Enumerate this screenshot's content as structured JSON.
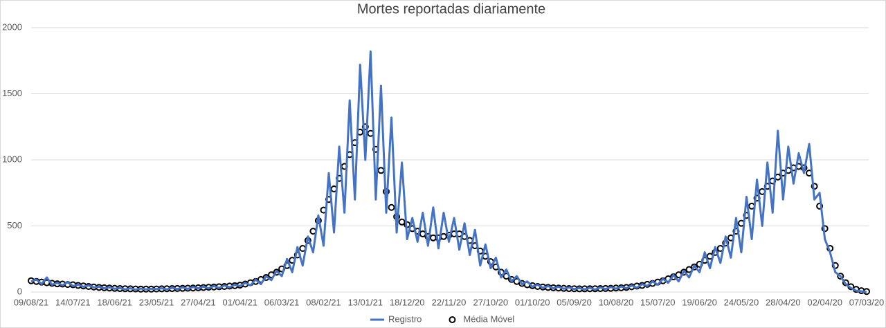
{
  "chart_data": {
    "type": "line",
    "title": "Mortes reportadas diariamente",
    "categories": [
      "09/08/21",
      null,
      null,
      null,
      null,
      null,
      null,
      null,
      "14/07/21",
      null,
      null,
      null,
      null,
      null,
      null,
      null,
      "18/06/21",
      null,
      null,
      null,
      null,
      null,
      null,
      null,
      "23/05/21",
      null,
      null,
      null,
      null,
      null,
      null,
      null,
      "27/04/21",
      null,
      null,
      null,
      null,
      null,
      null,
      null,
      "01/04/21",
      null,
      null,
      null,
      null,
      null,
      null,
      null,
      "06/03/21",
      null,
      null,
      null,
      null,
      null,
      null,
      null,
      "08/02/21",
      null,
      null,
      null,
      null,
      null,
      null,
      null,
      "13/01/21",
      null,
      null,
      null,
      null,
      null,
      null,
      null,
      "18/12/20",
      null,
      null,
      null,
      null,
      null,
      null,
      null,
      "22/11/20",
      null,
      null,
      null,
      null,
      null,
      null,
      null,
      "27/10/20",
      null,
      null,
      null,
      null,
      null,
      null,
      null,
      "01/10/20",
      null,
      null,
      null,
      null,
      null,
      null,
      null,
      "05/09/20",
      null,
      null,
      null,
      null,
      null,
      null,
      null,
      "10/08/20",
      null,
      null,
      null,
      null,
      null,
      null,
      null,
      "15/07/20",
      null,
      null,
      null,
      null,
      null,
      null,
      null,
      "19/06/20",
      null,
      null,
      null,
      null,
      null,
      null,
      null,
      "24/05/20",
      null,
      null,
      null,
      null,
      null,
      null,
      null,
      "28/04/20",
      null,
      null,
      null,
      null,
      null,
      null,
      null,
      "02/04/20",
      null,
      null,
      null,
      null,
      null,
      null,
      null,
      "07/03/20"
    ],
    "series": [
      {
        "name": "Registro",
        "color": "#4472c4",
        "style": "line",
        "values": [
          80,
          95,
          60,
          110,
          55,
          70,
          50,
          75,
          45,
          55,
          40,
          50,
          35,
          40,
          28,
          35,
          25,
          30,
          20,
          28,
          18,
          26,
          20,
          25,
          22,
          28,
          20,
          32,
          22,
          35,
          24,
          38,
          28,
          40,
          28,
          45,
          30,
          50,
          35,
          55,
          45,
          70,
          50,
          95,
          60,
          120,
          90,
          160,
          120,
          250,
          150,
          340,
          200,
          420,
          300,
          580,
          350,
          900,
          450,
          1100,
          600,
          1450,
          700,
          1720,
          1000,
          1820,
          700,
          1560,
          600,
          1320,
          450,
          980,
          400,
          560,
          380,
          600,
          350,
          640,
          330,
          600,
          380,
          560,
          320,
          520,
          280,
          470,
          200,
          360,
          180,
          260,
          110,
          170,
          80,
          120,
          60,
          80,
          40,
          55,
          32,
          45,
          28,
          40,
          25,
          35,
          22,
          30,
          20,
          32,
          18,
          35,
          22,
          38,
          25,
          42,
          28,
          50,
          32,
          60,
          45,
          80,
          55,
          100,
          70,
          130,
          80,
          160,
          110,
          200,
          150,
          300,
          180,
          340,
          220,
          420,
          260,
          560,
          300,
          720,
          400,
          850,
          500,
          980,
          600,
          1220,
          700,
          1100,
          820,
          1050,
          900,
          1120,
          700,
          750,
          400,
          300,
          150,
          120,
          60,
          30,
          10,
          5,
          0
        ]
      },
      {
        "name": "Média Móvel",
        "color": "#000000",
        "style": "markers",
        "values": [
          85,
          80,
          75,
          70,
          66,
          62,
          60,
          57,
          55,
          50,
          46,
          42,
          38,
          35,
          32,
          30,
          28,
          26,
          25,
          24,
          23,
          22,
          22,
          22,
          23,
          24,
          25,
          26,
          27,
          28,
          29,
          30,
          32,
          34,
          36,
          38,
          40,
          42,
          45,
          48,
          52,
          60,
          70,
          80,
          95,
          110,
          130,
          150,
          175,
          200,
          240,
          280,
          330,
          390,
          460,
          540,
          620,
          700,
          780,
          860,
          950,
          1040,
          1130,
          1210,
          1250,
          1200,
          1080,
          920,
          760,
          640,
          570,
          530,
          510,
          480,
          460,
          440,
          420,
          410,
          410,
          420,
          430,
          440,
          440,
          420,
          390,
          350,
          310,
          270,
          230,
          190,
          150,
          120,
          95,
          80,
          65,
          55,
          48,
          42,
          38,
          35,
          32,
          30,
          28,
          26,
          25,
          24,
          24,
          25,
          25,
          26,
          27,
          28,
          30,
          32,
          35,
          40,
          45,
          50,
          58,
          65,
          75,
          85,
          100,
          115,
          130,
          150,
          170,
          190,
          210,
          240,
          270,
          300,
          330,
          370,
          410,
          460,
          520,
          580,
          650,
          710,
          760,
          800,
          840,
          870,
          900,
          920,
          940,
          950,
          940,
          900,
          800,
          650,
          480,
          330,
          200,
          120,
          70,
          40,
          20,
          10,
          4
        ]
      }
    ],
    "ylim": [
      0,
      2000
    ],
    "yticks": [
      0,
      500,
      1000,
      1500,
      2000
    ],
    "grid": true,
    "legend": "bottom"
  }
}
